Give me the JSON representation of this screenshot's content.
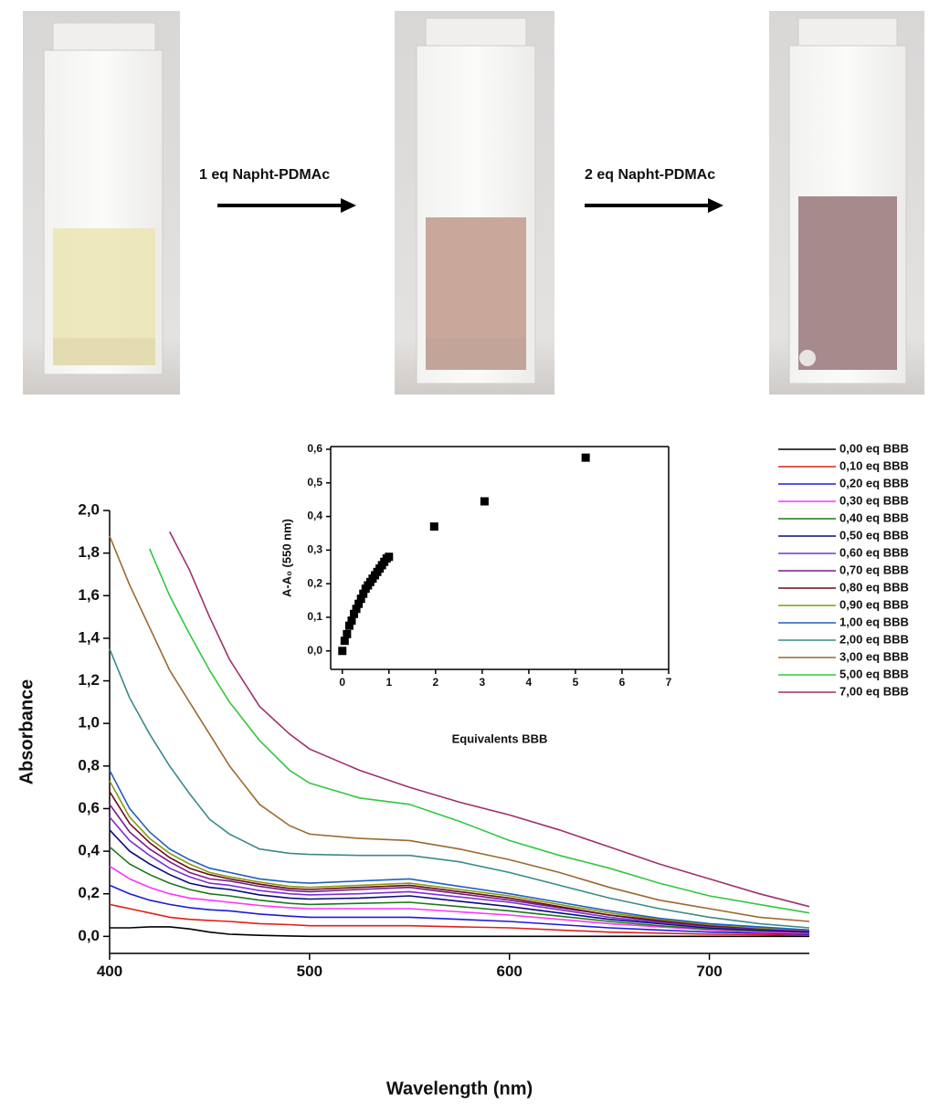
{
  "photo_labels": [
    "1 eq Napht-PDMAc",
    "2 eq Napht-PDMAc"
  ],
  "chart_data": [
    {
      "type": "line",
      "xlabel": "Wavelength (nm)",
      "ylabel": "Absorbance",
      "x": [
        400,
        410,
        420,
        430,
        440,
        450,
        460,
        475,
        490,
        500,
        525,
        550,
        575,
        600,
        625,
        650,
        675,
        700,
        725,
        750
      ],
      "xlim": [
        400,
        750
      ],
      "xticks": [
        400,
        500,
        600,
        700
      ],
      "ylim": [
        -0.08,
        2.0
      ],
      "yticks": [
        {
          "value": 0,
          "label": "0,0"
        },
        {
          "value": 0.2,
          "label": "0,2"
        },
        {
          "value": 0.4,
          "label": "0,4"
        },
        {
          "value": 0.6,
          "label": "0,6"
        },
        {
          "value": 0.8,
          "label": "0,8"
        },
        {
          "value": 1.0,
          "label": "1,0"
        },
        {
          "value": 1.2,
          "label": "1,2"
        },
        {
          "value": 1.4,
          "label": "1,4"
        },
        {
          "value": 1.6,
          "label": "1,6"
        },
        {
          "value": 1.8,
          "label": "1,8"
        },
        {
          "value": 2.0,
          "label": "2,0"
        }
      ],
      "series": [
        {
          "name": "0,00 eq BBB",
          "color": "#000000",
          "values": [
            0.04,
            0.04,
            0.045,
            0.045,
            0.035,
            0.02,
            0.01,
            0.005,
            0.002,
            0,
            0,
            0,
            0,
            0,
            0,
            0,
            0,
            0,
            0,
            0
          ]
        },
        {
          "name": "0,10 eq BBB",
          "color": "#e0201a",
          "values": [
            0.15,
            0.13,
            0.11,
            0.09,
            0.08,
            0.075,
            0.07,
            0.06,
            0.055,
            0.05,
            0.05,
            0.05,
            0.045,
            0.04,
            0.03,
            0.02,
            0.015,
            0.01,
            0.008,
            0.005
          ]
        },
        {
          "name": "0,20 eq BBB",
          "color": "#1c1cd8",
          "values": [
            0.24,
            0.2,
            0.17,
            0.15,
            0.135,
            0.125,
            0.12,
            0.105,
            0.095,
            0.09,
            0.09,
            0.09,
            0.08,
            0.07,
            0.055,
            0.04,
            0.03,
            0.02,
            0.015,
            0.01
          ]
        },
        {
          "name": "0,30 eq BBB",
          "color": "#ff33ff",
          "values": [
            0.33,
            0.27,
            0.23,
            0.2,
            0.18,
            0.17,
            0.16,
            0.145,
            0.135,
            0.13,
            0.13,
            0.13,
            0.115,
            0.1,
            0.08,
            0.06,
            0.045,
            0.03,
            0.02,
            0.015
          ]
        },
        {
          "name": "0,40 eq BBB",
          "color": "#1a7a1a",
          "values": [
            0.42,
            0.34,
            0.29,
            0.25,
            0.22,
            0.2,
            0.19,
            0.17,
            0.155,
            0.15,
            0.155,
            0.16,
            0.14,
            0.12,
            0.095,
            0.07,
            0.05,
            0.035,
            0.025,
            0.02
          ]
        },
        {
          "name": "0,50 eq BBB",
          "color": "#0a0a80",
          "values": [
            0.5,
            0.4,
            0.34,
            0.29,
            0.25,
            0.23,
            0.22,
            0.195,
            0.18,
            0.175,
            0.18,
            0.19,
            0.165,
            0.14,
            0.11,
            0.08,
            0.06,
            0.04,
            0.03,
            0.02
          ]
        },
        {
          "name": "0,60 eq BBB",
          "color": "#7a30d8",
          "values": [
            0.56,
            0.45,
            0.38,
            0.32,
            0.28,
            0.25,
            0.24,
            0.215,
            0.2,
            0.195,
            0.2,
            0.21,
            0.185,
            0.16,
            0.125,
            0.09,
            0.065,
            0.045,
            0.035,
            0.025
          ]
        },
        {
          "name": "0,70 eq BBB",
          "color": "#7a1a8a",
          "values": [
            0.62,
            0.49,
            0.41,
            0.35,
            0.3,
            0.27,
            0.26,
            0.235,
            0.215,
            0.21,
            0.22,
            0.23,
            0.2,
            0.17,
            0.135,
            0.1,
            0.07,
            0.05,
            0.035,
            0.025
          ]
        },
        {
          "name": "0,80 eq BBB",
          "color": "#6a0a1a",
          "values": [
            0.68,
            0.53,
            0.44,
            0.37,
            0.32,
            0.29,
            0.27,
            0.245,
            0.225,
            0.22,
            0.23,
            0.24,
            0.21,
            0.18,
            0.14,
            0.1,
            0.075,
            0.05,
            0.04,
            0.03
          ]
        },
        {
          "name": "0,90 eq BBB",
          "color": "#8a9a10",
          "values": [
            0.73,
            0.56,
            0.46,
            0.39,
            0.34,
            0.3,
            0.28,
            0.255,
            0.235,
            0.23,
            0.24,
            0.25,
            0.22,
            0.19,
            0.15,
            0.11,
            0.08,
            0.055,
            0.04,
            0.03
          ]
        },
        {
          "name": "1,00 eq BBB",
          "color": "#2060c0",
          "values": [
            0.78,
            0.6,
            0.49,
            0.41,
            0.36,
            0.32,
            0.3,
            0.27,
            0.255,
            0.25,
            0.26,
            0.27,
            0.235,
            0.2,
            0.16,
            0.12,
            0.085,
            0.06,
            0.045,
            0.03
          ]
        },
        {
          "name": "2,00 eq BBB",
          "color": "#3a8a8a",
          "values": [
            1.35,
            1.12,
            0.95,
            0.8,
            0.67,
            0.55,
            0.48,
            0.41,
            0.39,
            0.385,
            0.38,
            0.38,
            0.35,
            0.3,
            0.24,
            0.18,
            0.13,
            0.09,
            0.06,
            0.04
          ]
        },
        {
          "name": "3,00 eq BBB",
          "color": "#9a6a30",
          "values": [
            1.88,
            1.65,
            1.45,
            1.25,
            1.1,
            0.95,
            0.8,
            0.62,
            0.52,
            0.48,
            0.46,
            0.45,
            0.41,
            0.36,
            0.3,
            0.23,
            0.17,
            0.13,
            0.09,
            0.07
          ]
        },
        {
          "name": "5,00 eq BBB",
          "color": "#30c840",
          "values": [
            null,
            null,
            1.82,
            1.6,
            1.42,
            1.25,
            1.1,
            0.92,
            0.78,
            0.72,
            0.65,
            0.62,
            0.54,
            0.45,
            0.38,
            0.32,
            0.25,
            0.19,
            0.15,
            0.11
          ]
        },
        {
          "name": "7,00 eq BBB",
          "color": "#a0306a",
          "values": [
            null,
            null,
            null,
            1.9,
            1.72,
            1.5,
            1.3,
            1.08,
            0.95,
            0.88,
            0.78,
            0.7,
            0.63,
            0.57,
            0.5,
            0.42,
            0.34,
            0.27,
            0.2,
            0.14
          ]
        }
      ]
    },
    {
      "type": "scatter",
      "xlabel": "Equivalents BBB",
      "ylabel": "A-A₀ (550 nm)",
      "color": "#000000",
      "x": [
        0,
        0.05,
        0.1,
        0.15,
        0.2,
        0.25,
        0.3,
        0.35,
        0.4,
        0.45,
        0.5,
        0.55,
        0.6,
        0.65,
        0.7,
        0.75,
        0.8,
        0.85,
        0.9,
        0.95,
        1.0,
        1.97,
        3.05,
        5.22
      ],
      "values": [
        0,
        0.03,
        0.05,
        0.075,
        0.09,
        0.11,
        0.125,
        0.14,
        0.155,
        0.17,
        0.185,
        0.195,
        0.205,
        0.215,
        0.225,
        0.235,
        0.245,
        0.255,
        0.265,
        0.275,
        0.28,
        0.37,
        0.445,
        0.575
      ],
      "xlim": [
        -0.25,
        7
      ],
      "xticks": [
        0,
        1,
        2,
        3,
        4,
        5,
        6,
        7
      ],
      "ylim": [
        -0.055,
        0.608
      ],
      "yticks": [
        {
          "value": 0,
          "label": "0,0"
        },
        {
          "value": 0.1,
          "label": "0,1"
        },
        {
          "value": 0.2,
          "label": "0,2"
        },
        {
          "value": 0.3,
          "label": "0,3"
        },
        {
          "value": 0.4,
          "label": "0,4"
        },
        {
          "value": 0.5,
          "label": "0,5"
        },
        {
          "value": 0.6,
          "label": "0,6"
        }
      ]
    }
  ]
}
